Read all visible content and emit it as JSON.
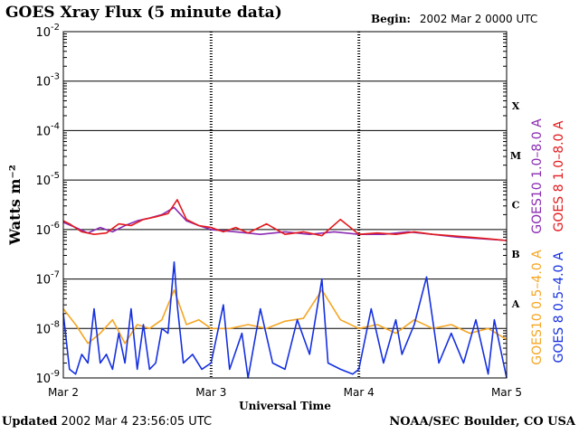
{
  "header": {
    "title": "GOES Xray Flux (5 minute data)",
    "begin_label": "Begin:",
    "begin_value": "2002 Mar 2 0000 UTC"
  },
  "footer": {
    "updated_label": "Updated",
    "updated_value": "2002 Mar  4 23:56:05 UTC",
    "credit": "NOAA/SEC Boulder, CO USA"
  },
  "colors": {
    "goes10_long": "#8B2BB3",
    "goes8_long": "#E31A1C",
    "goes10_short": "#F5A623",
    "goes8_short": "#1530E0"
  },
  "chart_data": {
    "type": "line",
    "title": "GOES Xray Flux (5 minute data)",
    "xlabel": "Universal Time",
    "ylabel": "Watts m⁻²",
    "y_scale": "log",
    "ylim": [
      1e-09,
      0.01
    ],
    "y_ticks": [
      {
        "value": 1e-09,
        "base": "10",
        "exp": "-9"
      },
      {
        "value": 1e-08,
        "base": "10",
        "exp": "-8"
      },
      {
        "value": 1e-07,
        "base": "10",
        "exp": "-7"
      },
      {
        "value": 1e-06,
        "base": "10",
        "exp": "-6"
      },
      {
        "value": 1e-05,
        "base": "10",
        "exp": "-5"
      },
      {
        "value": 0.0001,
        "base": "10",
        "exp": "-4"
      },
      {
        "value": 0.001,
        "base": "10",
        "exp": "-3"
      },
      {
        "value": 0.01,
        "base": "10",
        "exp": "-2"
      }
    ],
    "xlim": [
      "2002-03-02T00:00",
      "2002-03-05T00:00"
    ],
    "x_ticks": [
      "Mar 2",
      "Mar 3",
      "Mar 4",
      "Mar 5"
    ],
    "flare_classes": [
      {
        "label": "A",
        "value": 3.16e-08
      },
      {
        "label": "B",
        "value": 3.16e-07
      },
      {
        "label": "C",
        "value": 3.16e-06
      },
      {
        "label": "M",
        "value": 3.16e-05
      },
      {
        "label": "X",
        "value": 0.000316
      }
    ],
    "grid": true,
    "legend_placement": "right",
    "series": [
      {
        "name": "GOES10 1.0–8.0 A",
        "color": "#8B2BB3",
        "x": [
          "2002-03-02T00:00",
          "2002-03-02T02:00",
          "2002-03-02T04:00",
          "2002-03-02T06:00",
          "2002-03-02T08:00",
          "2002-03-02T10:00",
          "2002-03-02T12:00",
          "2002-03-02T14:00",
          "2002-03-02T16:00",
          "2002-03-02T18:00",
          "2002-03-02T20:00",
          "2002-03-02T22:00",
          "2002-03-03T00:00",
          "2002-03-03T04:00",
          "2002-03-03T08:00",
          "2002-03-03T12:00",
          "2002-03-03T16:00",
          "2002-03-03T20:00",
          "2002-03-04T00:00",
          "2002-03-04T04:00",
          "2002-03-04T08:00",
          "2002-03-04T12:00",
          "2002-03-04T16:00",
          "2002-03-04T20:00",
          "2002-03-05T00:00"
        ],
        "y": [
          1.4e-06,
          1.1e-06,
          8.5e-07,
          1.1e-06,
          9e-07,
          1.2e-06,
          1.5e-06,
          1.7e-06,
          2e-06,
          2.8e-06,
          1.5e-06,
          1.2e-06,
          1e-06,
          9e-07,
          8e-07,
          9e-07,
          8e-07,
          9e-07,
          8e-07,
          8e-07,
          9e-07,
          8e-07,
          7e-07,
          6.5e-07,
          6e-07
        ]
      },
      {
        "name": "GOES 8 1.0–8.0 A",
        "color": "#E31A1C",
        "x": [
          "2002-03-02T00:00",
          "2002-03-02T01:00",
          "2002-03-02T03:00",
          "2002-03-02T05:00",
          "2002-03-02T07:00",
          "2002-03-02T09:00",
          "2002-03-02T11:00",
          "2002-03-02T13:00",
          "2002-03-02T15:00",
          "2002-03-02T17:00",
          "2002-03-02T18:30",
          "2002-03-02T20:00",
          "2002-03-02T22:00",
          "2002-03-03T00:00",
          "2002-03-03T02:00",
          "2002-03-03T04:00",
          "2002-03-03T06:00",
          "2002-03-03T09:00",
          "2002-03-03T12:00",
          "2002-03-03T15:00",
          "2002-03-03T18:00",
          "2002-03-03T21:00",
          "2002-03-04T00:00",
          "2002-03-04T03:00",
          "2002-03-04T06:00",
          "2002-03-04T09:00",
          "2002-03-04T12:00",
          "2002-03-04T15:00",
          "2002-03-04T18:00",
          "2002-03-04T21:00",
          "2002-03-05T00:00"
        ],
        "y": [
          1.5e-06,
          1.3e-06,
          9e-07,
          8e-07,
          8.5e-07,
          1.3e-06,
          1.2e-06,
          1.6e-06,
          1.8e-06,
          2.1e-06,
          4e-06,
          1.6e-06,
          1.2e-06,
          1.1e-06,
          9e-07,
          1.1e-06,
          8.5e-07,
          1.3e-06,
          8e-07,
          9e-07,
          7.5e-07,
          1.6e-06,
          8e-07,
          8.5e-07,
          8e-07,
          9e-07,
          8e-07,
          7.5e-07,
          7e-07,
          6.5e-07,
          6e-07
        ]
      },
      {
        "name": "GOES10 0.5–4.0 A",
        "color": "#F5A623",
        "x": [
          "2002-03-02T00:00",
          "2002-03-02T02:00",
          "2002-03-02T04:00",
          "2002-03-02T06:00",
          "2002-03-02T08:00",
          "2002-03-02T10:00",
          "2002-03-02T12:00",
          "2002-03-02T14:00",
          "2002-03-02T16:00",
          "2002-03-02T18:00",
          "2002-03-02T20:00",
          "2002-03-02T22:00",
          "2002-03-03T00:00",
          "2002-03-03T03:00",
          "2002-03-03T06:00",
          "2002-03-03T09:00",
          "2002-03-03T12:00",
          "2002-03-03T15:00",
          "2002-03-03T18:00",
          "2002-03-03T21:00",
          "2002-03-04T00:00",
          "2002-03-04T03:00",
          "2002-03-04T06:00",
          "2002-03-04T09:00",
          "2002-03-04T12:00",
          "2002-03-04T15:00",
          "2002-03-04T18:00",
          "2002-03-04T21:00",
          "2002-03-05T00:00"
        ],
        "y": [
          2.5e-08,
          1.2e-08,
          5e-09,
          8e-09,
          1.5e-08,
          5e-09,
          1.2e-08,
          1e-08,
          1.5e-08,
          6e-08,
          1.2e-08,
          1.5e-08,
          1e-08,
          1e-08,
          1.2e-08,
          1e-08,
          1.4e-08,
          1.6e-08,
          6e-08,
          1.5e-08,
          1e-08,
          1.2e-08,
          8e-09,
          1.5e-08,
          1e-08,
          1.2e-08,
          8e-09,
          1e-08,
          6e-09
        ]
      },
      {
        "name": "GOES 8 0.5–4.0 A",
        "color": "#1530E0",
        "x": [
          "2002-03-02T00:00",
          "2002-03-02T01:00",
          "2002-03-02T02:00",
          "2002-03-02T03:00",
          "2002-03-02T04:00",
          "2002-03-02T05:00",
          "2002-03-02T06:00",
          "2002-03-02T07:00",
          "2002-03-02T08:00",
          "2002-03-02T09:00",
          "2002-03-02T10:00",
          "2002-03-02T11:00",
          "2002-03-02T12:00",
          "2002-03-02T13:00",
          "2002-03-02T14:00",
          "2002-03-02T15:00",
          "2002-03-02T16:00",
          "2002-03-02T17:00",
          "2002-03-02T18:00",
          "2002-03-02T18:30",
          "2002-03-02T19:30",
          "2002-03-02T21:00",
          "2002-03-02T22:30",
          "2002-03-03T00:00",
          "2002-03-03T02:00",
          "2002-03-03T03:00",
          "2002-03-03T05:00",
          "2002-03-03T06:00",
          "2002-03-03T08:00",
          "2002-03-03T10:00",
          "2002-03-03T12:00",
          "2002-03-03T14:00",
          "2002-03-03T16:00",
          "2002-03-03T18:00",
          "2002-03-03T19:00",
          "2002-03-03T21:00",
          "2002-03-03T23:00",
          "2002-03-04T00:00",
          "2002-03-04T02:00",
          "2002-03-04T04:00",
          "2002-03-04T06:00",
          "2002-03-04T07:00",
          "2002-03-04T09:00",
          "2002-03-04T11:00",
          "2002-03-04T13:00",
          "2002-03-04T15:00",
          "2002-03-04T17:00",
          "2002-03-04T19:00",
          "2002-03-04T21:00",
          "2002-03-04T22:00",
          "2002-03-05T00:00"
        ],
        "y": [
          2e-08,
          1.5e-09,
          1.2e-09,
          3e-09,
          2e-09,
          2.5e-08,
          2e-09,
          3e-09,
          1.5e-09,
          8e-09,
          2e-09,
          2.5e-08,
          1.5e-09,
          1.2e-08,
          1.5e-09,
          2e-09,
          1e-08,
          8e-09,
          2.2e-07,
          3e-08,
          2e-09,
          3e-09,
          1.5e-09,
          2e-09,
          3e-08,
          1.5e-09,
          8e-09,
          1e-09,
          2.5e-08,
          2e-09,
          1.5e-09,
          1.5e-08,
          3e-09,
          1e-07,
          2e-09,
          1.5e-09,
          1.2e-09,
          1.5e-09,
          2.5e-08,
          2e-09,
          1.5e-08,
          3e-09,
          1.2e-08,
          1.1e-07,
          2e-09,
          8e-09,
          2e-09,
          1.5e-08,
          1.2e-09,
          1.5e-08,
          1e-09
        ]
      }
    ]
  }
}
